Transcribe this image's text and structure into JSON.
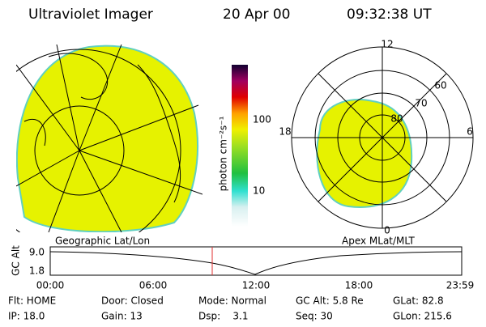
{
  "header": {
    "title": "Ultraviolet Imager",
    "date": "20 Apr 00",
    "time": "09:32:38 UT"
  },
  "colorbar": {
    "label": "photon cm⁻²s⁻¹",
    "ticks": [
      "100",
      "10"
    ]
  },
  "polar_plot": {
    "labels": [
      "12",
      "60",
      "70",
      "80",
      "18",
      "6",
      "0"
    ]
  },
  "captions": [
    "Geographic Lat/Lon",
    "Apex MLat/MLT"
  ],
  "altitude_plot": {
    "ylabel": "GC Alt",
    "yticks": [
      "9.0",
      "1.8"
    ],
    "xticks": [
      "00:00",
      "06:00",
      "12:00",
      "18:00",
      "23:59"
    ]
  },
  "status": {
    "rows": [
      [
        "Flt: HOME",
        "Door: Closed",
        "Mode: Normal",
        "GC Alt: 5.8 Re",
        "GLat: 82.8"
      ],
      [
        "IP: 18.0",
        "Gain: 13",
        "Dsp:    3.1",
        "Seq: 30",
        "GLon: 215.6"
      ]
    ]
  }
}
